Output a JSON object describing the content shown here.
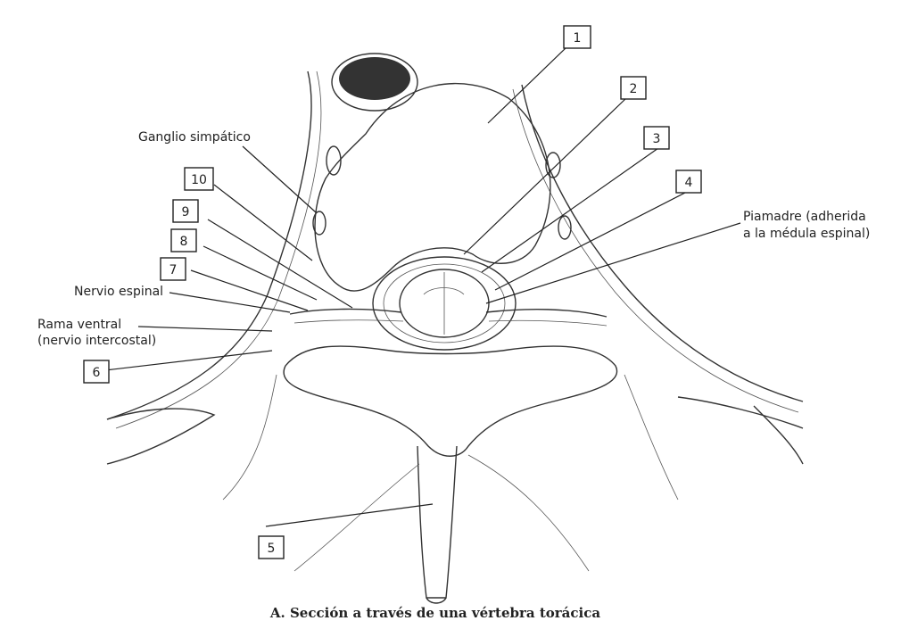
{
  "labels": {
    "ganglio": "Ganglio simpático",
    "piamadre_line1": "Piamadre (adherida",
    "piamadre_line2": "a la médula espinal)",
    "nervio_espinal": "Nervio espinal",
    "rama_line1": "Rama ventral",
    "rama_line2": "(nervio intercostal)"
  },
  "numbers": [
    "1",
    "2",
    "3",
    "4",
    "5",
    "6",
    "7",
    "8",
    "9",
    "10"
  ],
  "caption": "A. Sección a través de una vértebra torácica"
}
